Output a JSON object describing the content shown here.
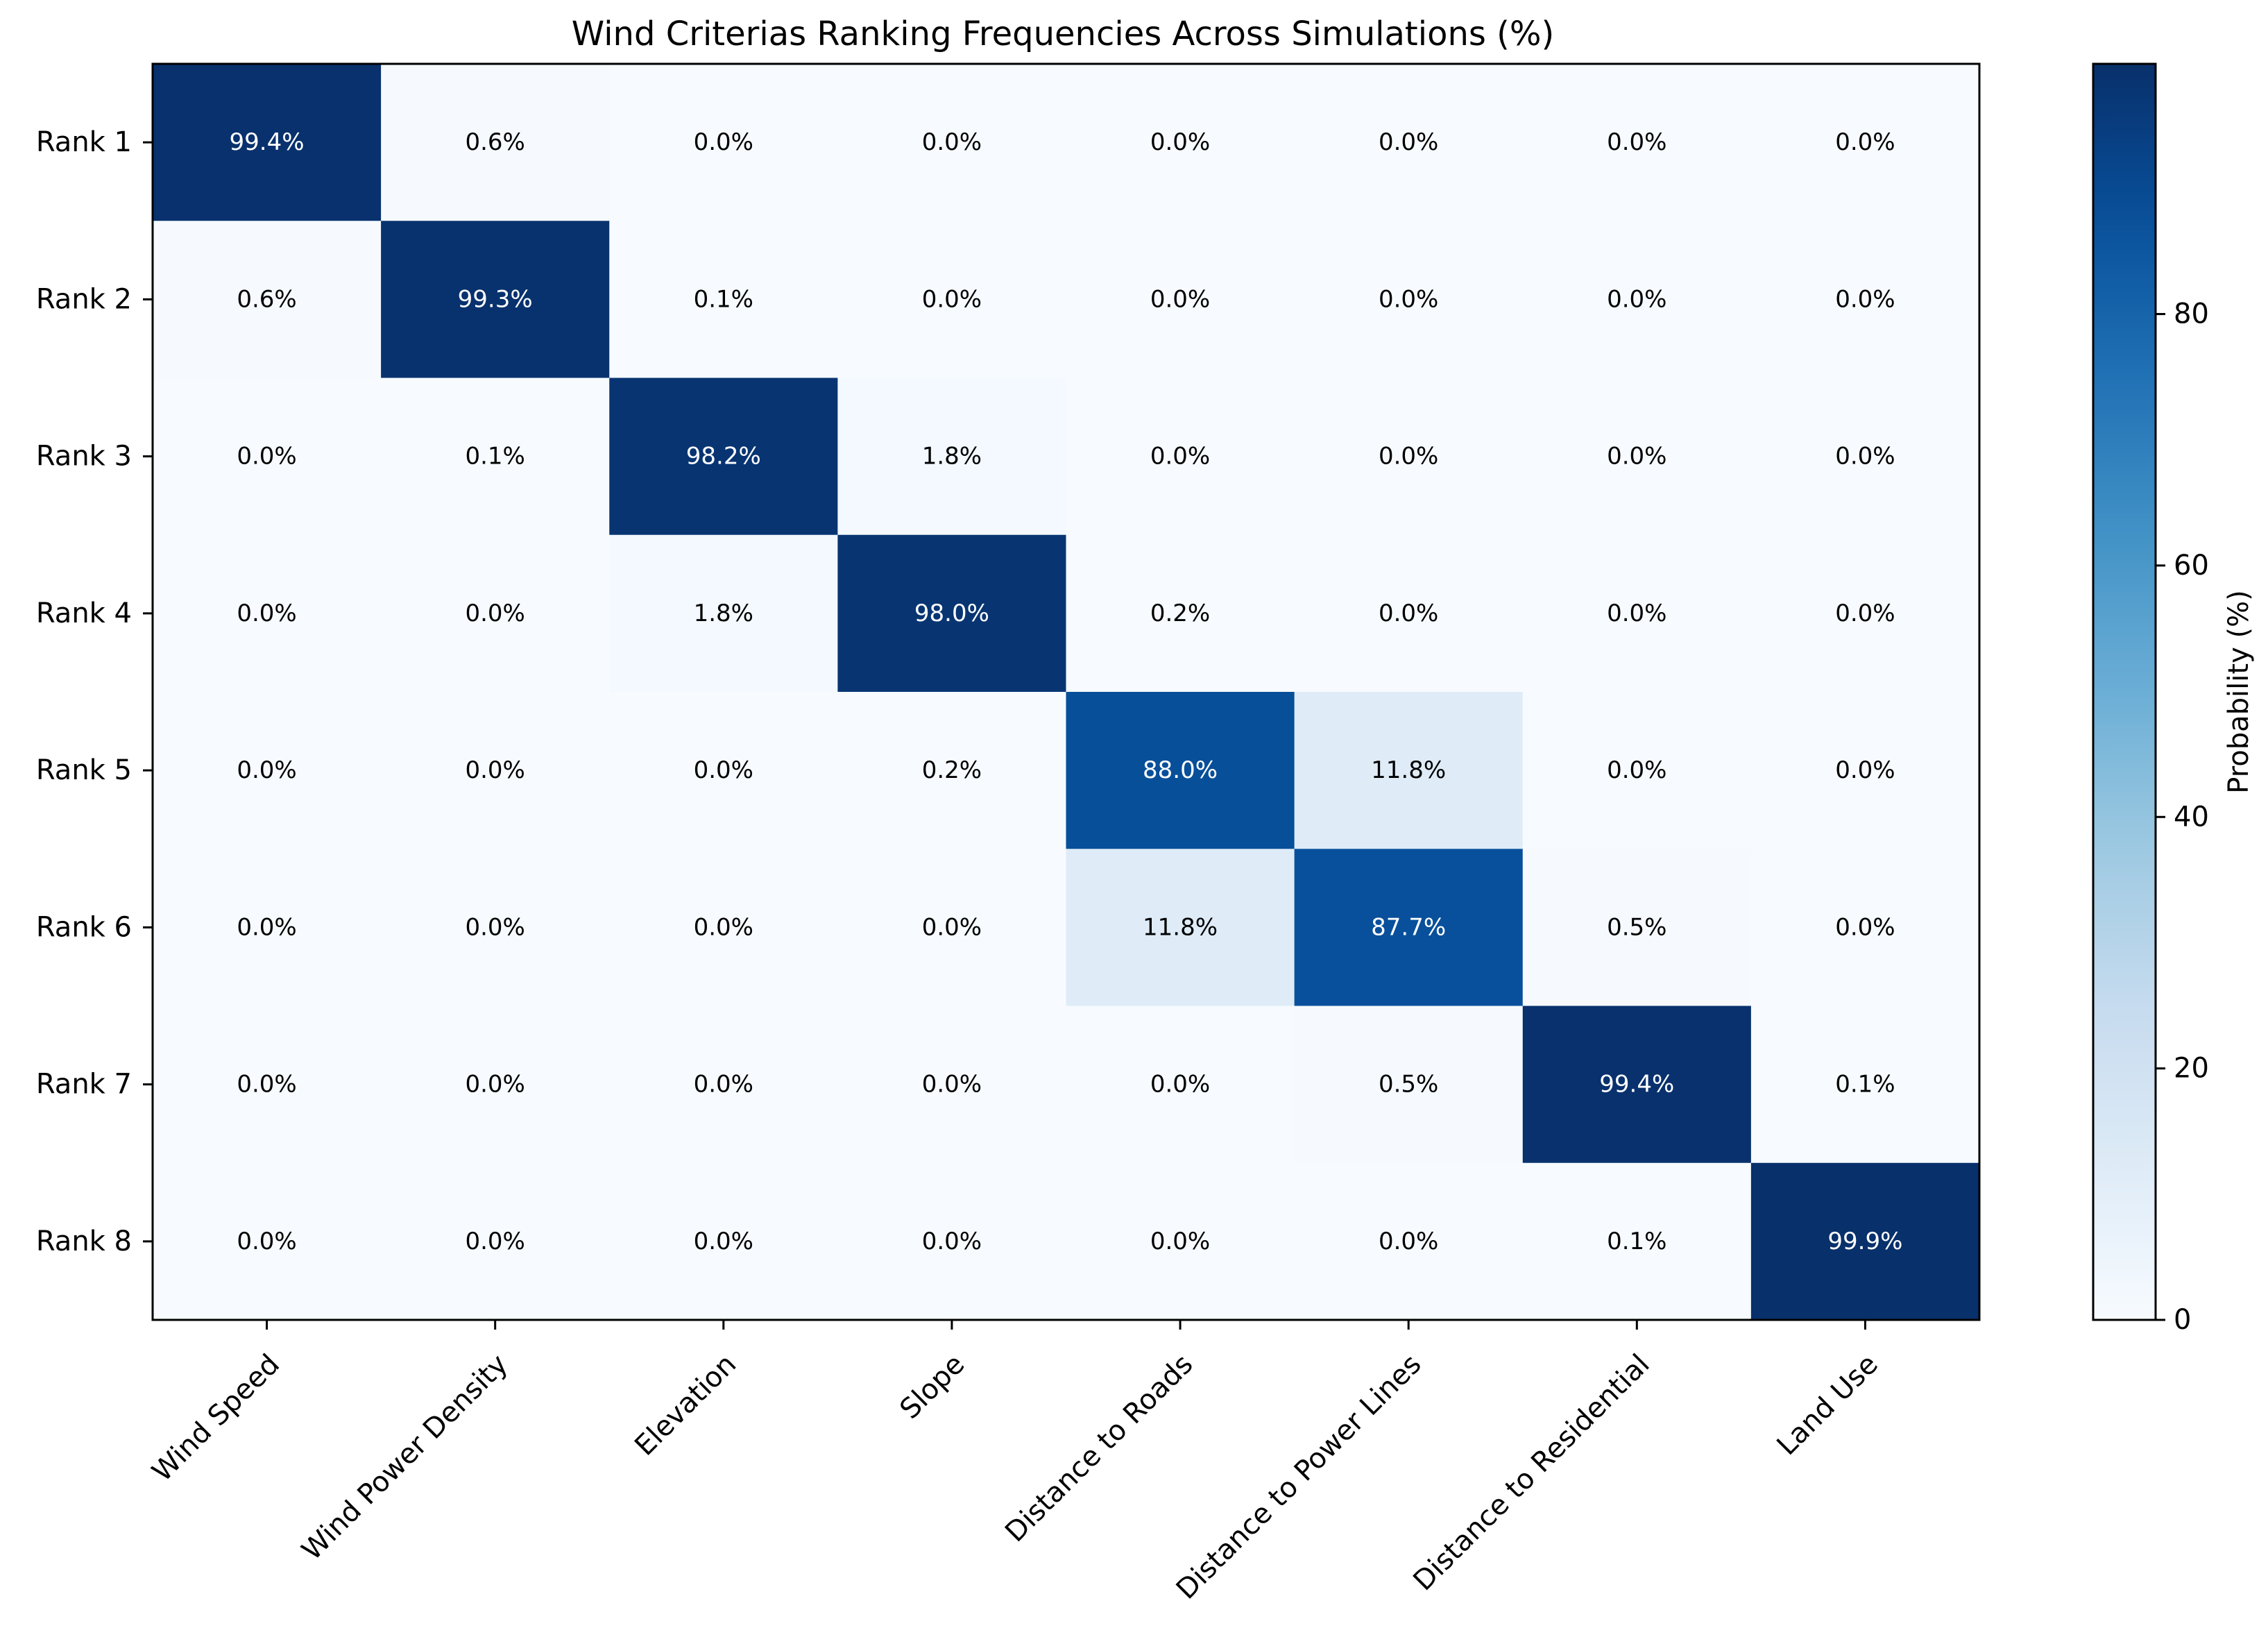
{
  "chart_data": {
    "type": "heatmap",
    "title": "Wind Criterias Ranking Frequencies Across Simulations (%)",
    "columns": [
      "Wind Speed",
      "Wind Power Density",
      "Elevation",
      "Slope",
      "Distance to Roads",
      "Distance to Power Lines",
      "Distance to Residential",
      "Land Use"
    ],
    "rows": [
      "Rank 1",
      "Rank 2",
      "Rank 3",
      "Rank 4",
      "Rank 5",
      "Rank 6",
      "Rank 7",
      "Rank 8"
    ],
    "values": [
      [
        99.4,
        0.6,
        0.0,
        0.0,
        0.0,
        0.0,
        0.0,
        0.0
      ],
      [
        0.6,
        99.3,
        0.1,
        0.0,
        0.0,
        0.0,
        0.0,
        0.0
      ],
      [
        0.0,
        0.1,
        98.2,
        1.8,
        0.0,
        0.0,
        0.0,
        0.0
      ],
      [
        0.0,
        0.0,
        1.8,
        98.0,
        0.2,
        0.0,
        0.0,
        0.0
      ],
      [
        0.0,
        0.0,
        0.0,
        0.2,
        88.0,
        11.8,
        0.0,
        0.0
      ],
      [
        0.0,
        0.0,
        0.0,
        0.0,
        11.8,
        87.7,
        0.5,
        0.0
      ],
      [
        0.0,
        0.0,
        0.0,
        0.0,
        0.0,
        0.5,
        99.4,
        0.1
      ],
      [
        0.0,
        0.0,
        0.0,
        0.0,
        0.0,
        0.0,
        0.1,
        99.9
      ]
    ],
    "value_format": "0.1%",
    "colormap": "Blues",
    "colorbar": {
      "label": "Probability (%)",
      "ticks": [
        0,
        20,
        40,
        60,
        80
      ],
      "range": [
        0,
        99.9
      ]
    }
  }
}
